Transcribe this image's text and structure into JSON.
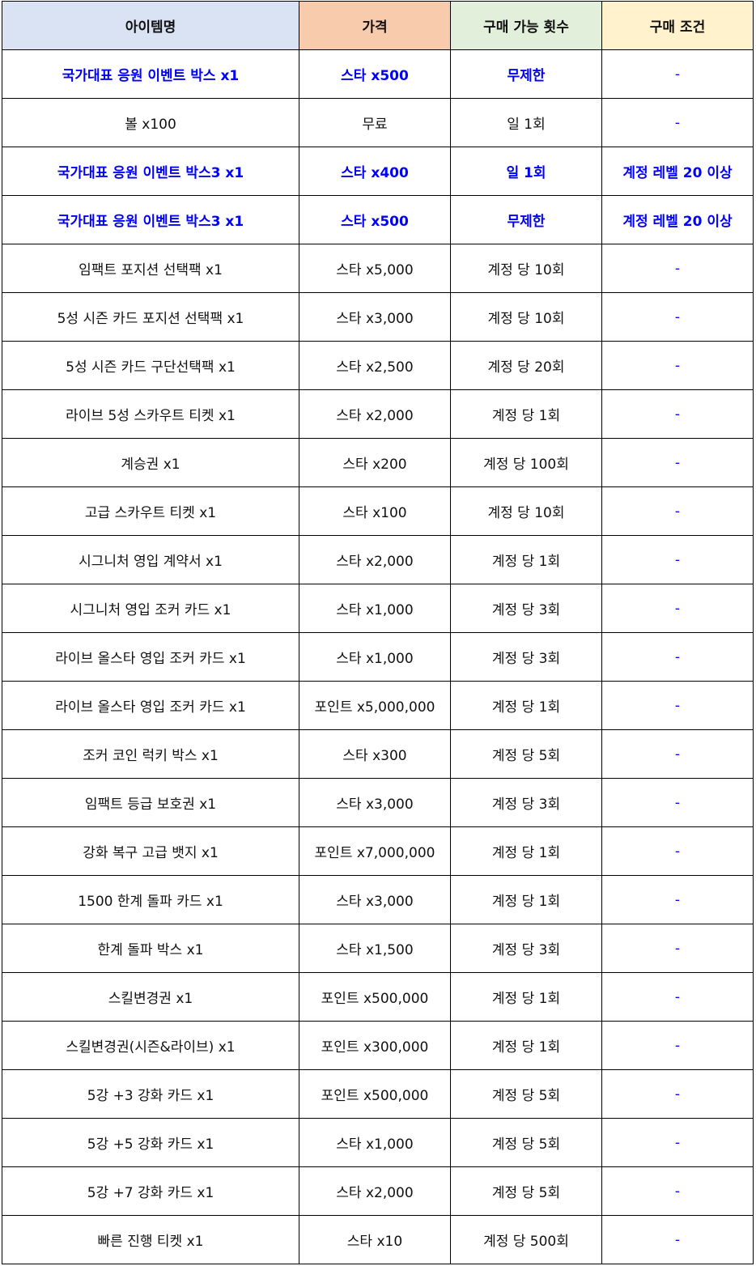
{
  "colors": {
    "header": [
      "#dae3f3",
      "#f8cbad",
      "#e2efda",
      "#fff2cc"
    ],
    "highlight_text": "#0000ff",
    "dash": "#0000ff"
  },
  "headers": [
    "아이템명",
    "가격",
    "구매 가능 횟수",
    "구매 조건"
  ],
  "rows": [
    {
      "item": "국가대표 응원 이벤트 박스 x1",
      "price": "스타 x500",
      "limit": "무제한",
      "cond": "-",
      "hl": true
    },
    {
      "item": "볼 x100",
      "price": "무료",
      "limit": "일 1회",
      "cond": "-",
      "hl": false
    },
    {
      "item": "국가대표 응원 이벤트 박스3 x1",
      "price": "스타 x400",
      "limit": "일 1회",
      "cond": "계정 레벨 20 이상",
      "hl": true
    },
    {
      "item": "국가대표 응원 이벤트 박스3 x1",
      "price": "스타 x500",
      "limit": "무제한",
      "cond": "계정 레벨 20 이상",
      "hl": true
    },
    {
      "item": "임팩트 포지션 선택팩 x1",
      "price": "스타 x5,000",
      "limit": "계정 당 10회",
      "cond": "-",
      "hl": false
    },
    {
      "item": "5성 시즌 카드 포지션 선택팩 x1",
      "price": "스타 x3,000",
      "limit": "계정 당 10회",
      "cond": "-",
      "hl": false
    },
    {
      "item": "5성 시즌 카드 구단선택팩 x1",
      "price": "스타 x2,500",
      "limit": "계정 당 20회",
      "cond": "-",
      "hl": false
    },
    {
      "item": "라이브 5성 스카우트 티켓 x1",
      "price": "스타 x2,000",
      "limit": "계정 당 1회",
      "cond": "-",
      "hl": false
    },
    {
      "item": "계승권 x1",
      "price": "스타 x200",
      "limit": "계정 당 100회",
      "cond": "-",
      "hl": false
    },
    {
      "item": "고급 스카우트 티켓 x1",
      "price": "스타 x100",
      "limit": "계정 당 10회",
      "cond": "-",
      "hl": false
    },
    {
      "item": "시그니처 영입 계약서 x1",
      "price": "스타 x2,000",
      "limit": "계정 당 1회",
      "cond": "-",
      "hl": false
    },
    {
      "item": "시그니처 영입 조커 카드 x1",
      "price": "스타 x1,000",
      "limit": "계정 당 3회",
      "cond": "-",
      "hl": false
    },
    {
      "item": "라이브 올스타 영입 조커 카드 x1",
      "price": "스타 x1,000",
      "limit": "계정 당 3회",
      "cond": "-",
      "hl": false
    },
    {
      "item": "라이브 올스타 영입 조커 카드 x1",
      "price": "포인트 x5,000,000",
      "limit": "계정 당 1회",
      "cond": "-",
      "hl": false
    },
    {
      "item": "조커 코인 럭키 박스 x1",
      "price": "스타 x300",
      "limit": "계정 당 5회",
      "cond": "-",
      "hl": false
    },
    {
      "item": "임팩트 등급 보호권 x1",
      "price": "스타 x3,000",
      "limit": "계정 당 3회",
      "cond": "-",
      "hl": false
    },
    {
      "item": "강화 복구 고급 뱃지 x1",
      "price": "포인트 x7,000,000",
      "limit": "계정 당 1회",
      "cond": "-",
      "hl": false
    },
    {
      "item": "1500 한계 돌파 카드 x1",
      "price": "스타 x3,000",
      "limit": "계정 당 1회",
      "cond": "-",
      "hl": false
    },
    {
      "item": "한계 돌파 박스 x1",
      "price": "스타 x1,500",
      "limit": "계정 당 3회",
      "cond": "-",
      "hl": false
    },
    {
      "item": "스킬변경권 x1",
      "price": "포인트 x500,000",
      "limit": "계정 당 1회",
      "cond": "-",
      "hl": false
    },
    {
      "item": "스킬변경권(시즌&라이브) x1",
      "price": "포인트 x300,000",
      "limit": "계정 당 1회",
      "cond": "-",
      "hl": false
    },
    {
      "item": "5강 +3 강화 카드 x1",
      "price": "포인트 x500,000",
      "limit": "계정 당 5회",
      "cond": "-",
      "hl": false
    },
    {
      "item": "5강 +5 강화 카드 x1",
      "price": "스타 x1,000",
      "limit": "계정 당 5회",
      "cond": "-",
      "hl": false
    },
    {
      "item": "5강 +7 강화 카드 x1",
      "price": "스타 x2,000",
      "limit": "계정 당 5회",
      "cond": "-",
      "hl": false
    },
    {
      "item": "빠른 진행 티켓 x1",
      "price": "스타 x10",
      "limit": "계정 당 500회",
      "cond": "-",
      "hl": false
    }
  ]
}
